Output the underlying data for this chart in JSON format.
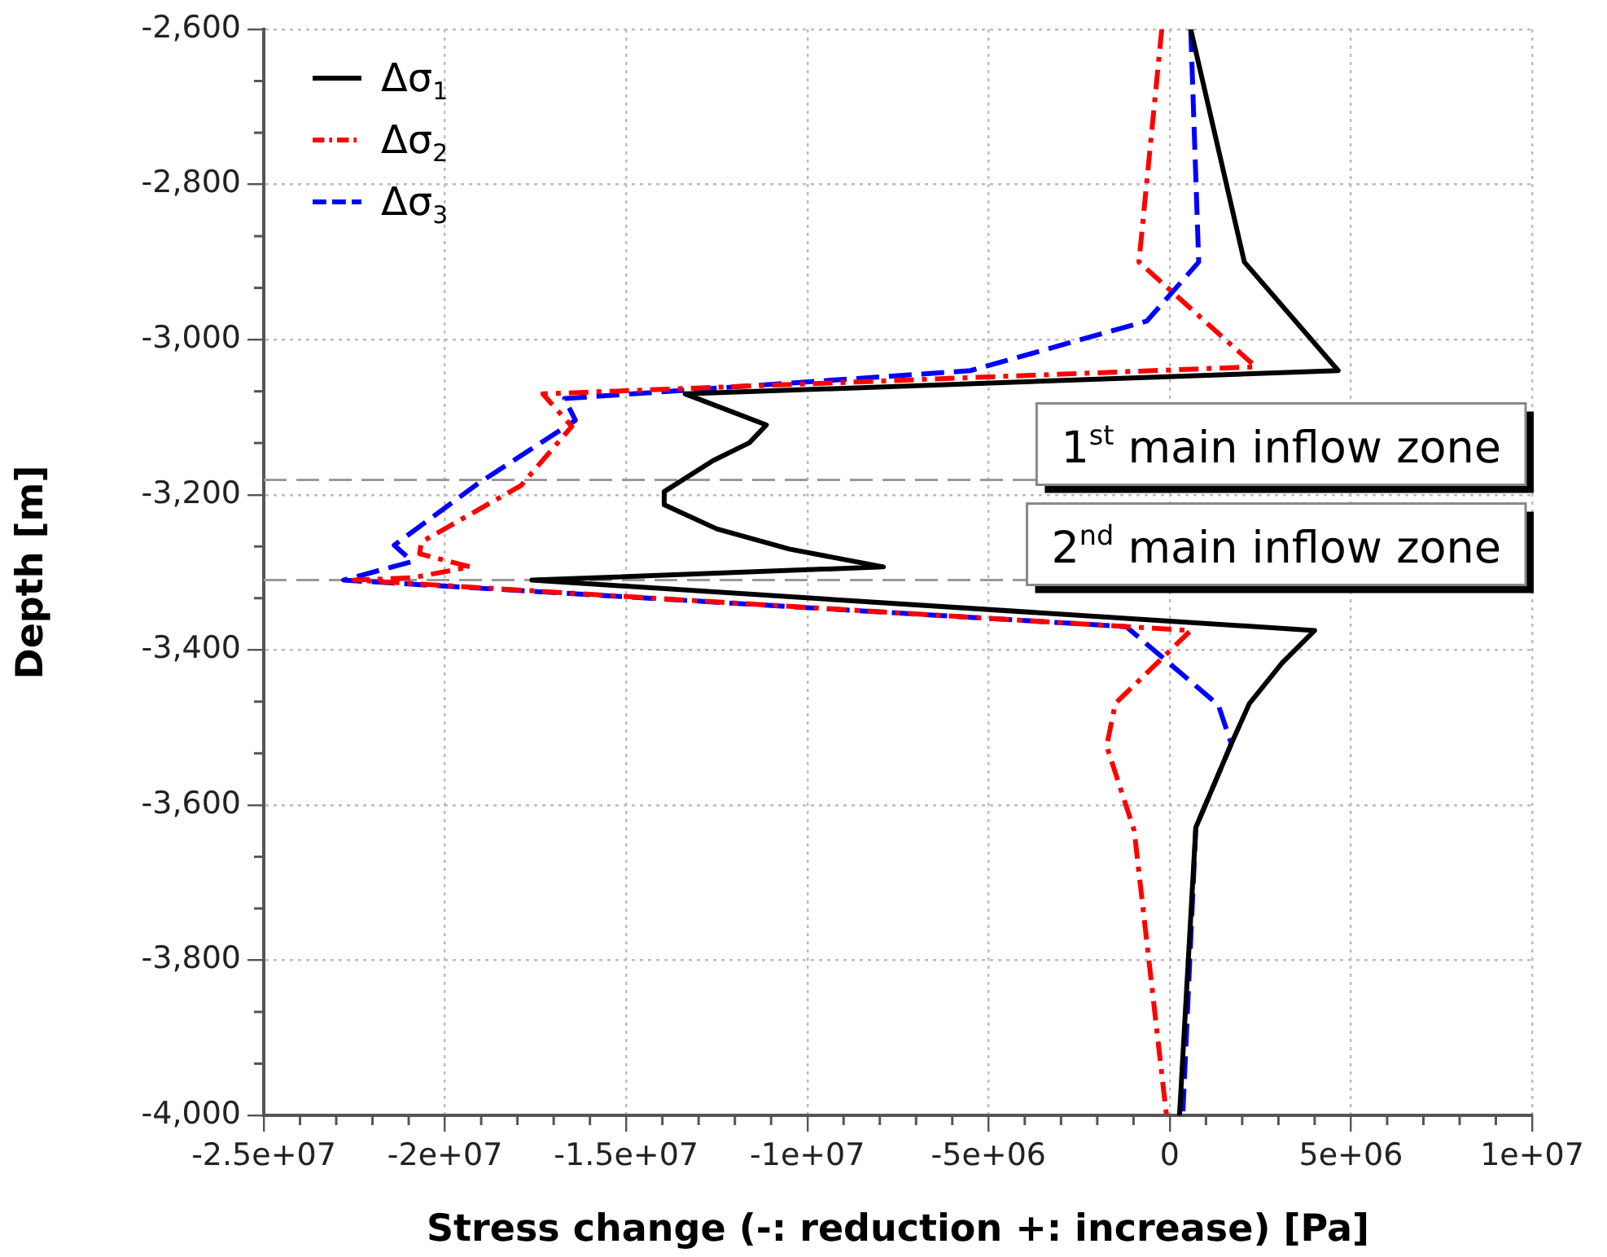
{
  "chart_data": {
    "type": "line",
    "xlabel": "Stress change (-: reduction +: increase) [Pa]",
    "ylabel": "Depth [m]",
    "xlim": [
      -25000000,
      10000000
    ],
    "xticks": [
      {
        "value": -25000000,
        "label": "-2.5e+07"
      },
      {
        "value": -20000000,
        "label": "-2e+07"
      },
      {
        "value": -15000000,
        "label": "-1.5e+07"
      },
      {
        "value": -10000000,
        "label": "-1e+07"
      },
      {
        "value": -5000000,
        "label": "-5e+06"
      },
      0,
      {
        "value": 5000000,
        "label": "5e+06"
      },
      {
        "value": 10000000,
        "label": "1e+07"
      }
    ],
    "ylim": [
      -4000,
      -2600
    ],
    "yticks": [
      {
        "value": -4000,
        "label": "-4,000"
      },
      {
        "value": -3800,
        "label": "-3,800"
      },
      {
        "value": -3600,
        "label": "-3,600"
      },
      {
        "value": -3400,
        "label": "-3,400"
      },
      {
        "value": -3200,
        "label": "-3,200"
      },
      {
        "value": -3000,
        "label": "-3,000"
      },
      {
        "value": -2800,
        "label": "-2,800"
      },
      {
        "value": -2600,
        "label": "-2,600"
      }
    ],
    "grid": true,
    "legend": "top left",
    "marker": "none",
    "series": [
      {
        "name": "Δσ$_{1}$",
        "color": "#000000",
        "line_style": "solid",
        "x": [
          580000,
          2060000,
          4650000,
          -13370000,
          -11130000,
          -11600000,
          -12600000,
          -13950000,
          -13950000,
          -12500000,
          -10500000,
          -7900000,
          -17600000,
          4000000,
          3100000,
          2200000,
          1700000,
          720000,
          270000
        ],
        "values": [
          -2600,
          -2900,
          -3040,
          -3070,
          -3110,
          -3133,
          -3156,
          -3196,
          -3213,
          -3244,
          -3270,
          -3293,
          -3310,
          -3375,
          -3417,
          -3469,
          -3521,
          -3629,
          -4000
        ]
      },
      {
        "name": "Δσ$_{2}$",
        "color": "#ff0000",
        "line_style": "dashdot",
        "x": [
          -220000,
          -850000,
          2370000,
          -17300000,
          -16500000,
          -17900000,
          -20650000,
          -20700000,
          -19300000,
          -20900000,
          -22500000,
          580000,
          -1500000,
          -1740000,
          -980000,
          -90000
        ],
        "values": [
          -2600,
          -2900,
          -3035,
          -3070,
          -3112,
          -3188,
          -3261,
          -3276,
          -3293,
          -3307,
          -3310,
          -3375,
          -3469,
          -3524,
          -3633,
          -4000
        ]
      },
      {
        "name": "Δσ$_{3}$",
        "color": "#0000ff",
        "line_style": "dashed",
        "x": [
          580000,
          800000,
          -630000,
          -5500000,
          -16700000,
          -16400000,
          -19100000,
          -21400000,
          -20900000,
          -22800000,
          -1200000,
          1340000,
          1700000,
          720000,
          360000
        ],
        "values": [
          -2600,
          -2900,
          -2976,
          -3040,
          -3076,
          -3104,
          -3186,
          -3265,
          -3286,
          -3310,
          -3370,
          -3471,
          -3521,
          -3629,
          -4000
        ]
      }
    ],
    "ref_lines": [
      {
        "axis": "y",
        "value": -3181,
        "label": "1$^{st}$ main inflow zone",
        "color": "#999999",
        "line_style": "dashed"
      },
      {
        "axis": "y",
        "value": -3310,
        "label": "2$^{nd}$ main inflow zone",
        "color": "#999999",
        "line_style": "dashed"
      }
    ]
  }
}
